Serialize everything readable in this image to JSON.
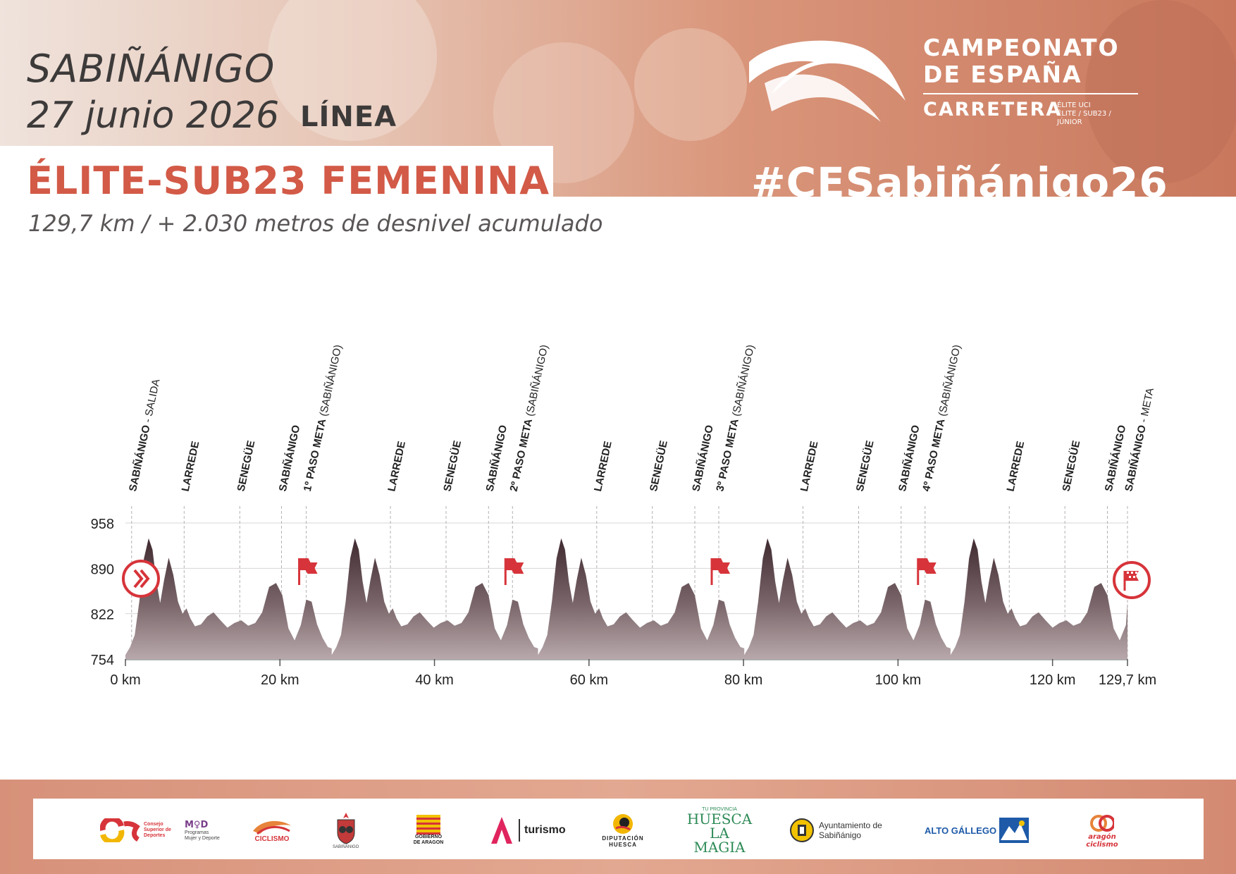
{
  "header": {
    "city": "SABIÑÁNIGO",
    "date": "27 junio 2026",
    "race_type": "LÍNEA",
    "category": "ÉLITE-SUB23 FEMENINA",
    "distance_text": "129,7 km / + 2.030 metros de desnivel acumulado",
    "hashtag": "#CESabiñánigo26"
  },
  "championship_logo": {
    "title_line1": "CAMPEONATO",
    "title_line2": "DE ESPAÑA",
    "subtitle": "CARRETERA",
    "mini_line1": "ÉLITE UCI",
    "mini_line2": "ÉLITE / SUB23 / JÚNIOR"
  },
  "colors": {
    "accent_red": "#d25a47",
    "flag_red": "#d6343a",
    "profile_dark": "#3f2a30",
    "profile_light": "#b8a8ab",
    "text_dark": "#3d3a3a"
  },
  "chart_data": {
    "type": "area",
    "xlabel": "",
    "ylabel": "",
    "xlim": [
      0,
      129.7
    ],
    "ylim": [
      754,
      958
    ],
    "yticks": [
      754,
      822,
      890,
      958
    ],
    "xticks": [
      0,
      20,
      40,
      60,
      80,
      100,
      120,
      129.7
    ],
    "xtick_labels": [
      "0 km",
      "20 km",
      "40 km",
      "60 km",
      "80 km",
      "100 km",
      "120 km",
      "129,7 km"
    ],
    "grid": true,
    "elevation_profile": {
      "x": [
        0,
        0.6,
        1.2,
        1.8,
        2.4,
        3.0,
        3.5,
        4.0,
        4.5,
        5.0,
        5.6,
        6.2,
        6.8,
        7.4,
        7.9,
        8.4,
        9.0,
        9.8,
        10.6,
        11.4,
        12.3,
        13.2,
        14.1,
        15.0,
        15.9,
        16.8,
        17.7,
        18.6,
        19.5,
        20.3,
        21.1,
        21.9,
        22.7,
        23.4,
        24.1,
        24.8,
        25.5,
        26.2,
        26.7
      ],
      "y": [
        760,
        772,
        790,
        840,
        905,
        935,
        918,
        870,
        838,
        872,
        906,
        880,
        840,
        822,
        830,
        815,
        803,
        806,
        818,
        824,
        812,
        801,
        808,
        812,
        804,
        808,
        824,
        862,
        868,
        850,
        800,
        782,
        805,
        843,
        840,
        806,
        786,
        772,
        770
      ],
      "lap_length_km": 26.7,
      "laps": 5,
      "finish_x": 129.7,
      "finish_y": 838
    },
    "points": [
      {
        "km": 0.8,
        "name": "SABIÑÁNIGO",
        "sub": "SALIDA",
        "style": "bold-sub"
      },
      {
        "km": 7.6,
        "name": "LARREDE",
        "style": "bold"
      },
      {
        "km": 14.8,
        "name": "SENEGÜE",
        "style": "bold"
      },
      {
        "km": 20.2,
        "name": "SABIÑÁNIGO",
        "style": "bold"
      },
      {
        "km": 23.4,
        "name": "1º PASO META",
        "sub": "(SABIÑÁNIGO)",
        "style": "bold-paren"
      },
      {
        "km": 34.3,
        "name": "LARREDE",
        "style": "bold"
      },
      {
        "km": 41.5,
        "name": "SENEGÜE",
        "style": "bold"
      },
      {
        "km": 47.0,
        "name": "SABIÑÁNIGO",
        "style": "bold"
      },
      {
        "km": 50.1,
        "name": "2º PASO META",
        "sub": "(SABIÑÁNIGO)",
        "style": "bold-paren"
      },
      {
        "km": 61.0,
        "name": "LARREDE",
        "style": "bold"
      },
      {
        "km": 68.2,
        "name": "SENEGÜE",
        "style": "bold"
      },
      {
        "km": 73.7,
        "name": "SABIÑÁNIGO",
        "style": "bold"
      },
      {
        "km": 76.8,
        "name": "3º PASO META",
        "sub": "(SABIÑÁNIGO)",
        "style": "bold-paren"
      },
      {
        "km": 87.7,
        "name": "LARREDE",
        "style": "bold"
      },
      {
        "km": 94.9,
        "name": "SENEGÜE",
        "style": "bold"
      },
      {
        "km": 100.4,
        "name": "SABIÑÁNIGO",
        "style": "bold"
      },
      {
        "km": 103.5,
        "name": "4º PASO META",
        "sub": "(SABIÑÁNIGO)",
        "style": "bold-paren"
      },
      {
        "km": 114.4,
        "name": "LARREDE",
        "style": "bold"
      },
      {
        "km": 121.6,
        "name": "SENEGÜE",
        "style": "bold"
      },
      {
        "km": 127.1,
        "name": "SABIÑÁNIGO",
        "style": "bold"
      },
      {
        "km": 129.7,
        "name": "SABIÑÁNIGO",
        "sub": "META",
        "style": "bold-sub"
      }
    ],
    "markers": [
      {
        "km": 1.0,
        "type": "start",
        "icon": "start-chevrons-icon"
      },
      {
        "km": 23.4,
        "type": "lap-flag",
        "icon": "flag-icon"
      },
      {
        "km": 50.1,
        "type": "lap-flag",
        "icon": "flag-icon"
      },
      {
        "km": 76.8,
        "type": "lap-flag",
        "icon": "flag-icon"
      },
      {
        "km": 103.5,
        "type": "lap-flag",
        "icon": "flag-icon"
      },
      {
        "km": 129.7,
        "type": "finish",
        "icon": "checkered-flag-icon"
      }
    ]
  },
  "footer": {
    "sponsors": [
      {
        "id": "csd",
        "text": "Consejo Superior de Deportes"
      },
      {
        "id": "myd",
        "text": "Programas Mujer y Deporte"
      },
      {
        "id": "rfec",
        "text": "CICLISMO"
      },
      {
        "id": "sabinanigo-crest",
        "text": "SABIÑÁNIGO"
      },
      {
        "id": "gobierno-aragon",
        "text": "GOBIERNO DE ARAGON"
      },
      {
        "id": "aragon-turismo",
        "text": "turismo"
      },
      {
        "id": "diputacion-huesca",
        "text": "DIPUTACIÓN HUESCA"
      },
      {
        "id": "huesca-la-magia",
        "text": "HUESCA LA MAGIA"
      },
      {
        "id": "ayto-sabinanigo",
        "text": "Ayuntamiento de Sabiñánigo"
      },
      {
        "id": "alto-gallego",
        "text": "ALTO GÁLLEGO"
      },
      {
        "id": "aragon-ciclismo",
        "text": "aragón ciclismo"
      }
    ]
  }
}
